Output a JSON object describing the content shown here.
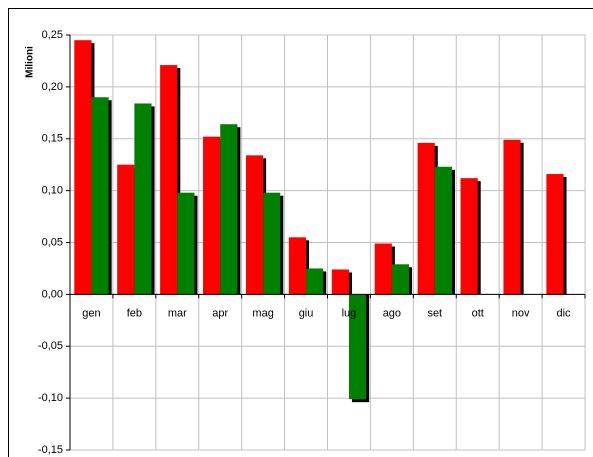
{
  "chart_data": {
    "type": "bar",
    "y_label": "Milioni",
    "categories": [
      "gen",
      "feb",
      "mar",
      "apr",
      "mag",
      "giu",
      "lug",
      "ago",
      "set",
      "ott",
      "nov",
      "dic"
    ],
    "series": [
      {
        "color": "#ff0000",
        "values": [
          0.245,
          0.125,
          0.221,
          0.152,
          0.134,
          0.055,
          0.024,
          0.049,
          0.146,
          0.112,
          0.149,
          0.116
        ]
      },
      {
        "color": "#008000",
        "values": [
          0.19,
          0.184,
          0.098,
          0.164,
          0.098,
          0.025,
          -0.101,
          0.029,
          0.123,
          null,
          null,
          null
        ]
      }
    ],
    "ylim": [
      -0.15,
      0.25
    ],
    "yticks": [
      {
        "value": -0.15,
        "label": "-0,15"
      },
      {
        "value": -0.1,
        "label": "-0,10"
      },
      {
        "value": -0.05,
        "label": "-0,05"
      },
      {
        "value": 0,
        "label": "0,00"
      },
      {
        "value": 0.05,
        "label": "0,05"
      },
      {
        "value": 0.1,
        "label": "0,10"
      },
      {
        "value": 0.15,
        "label": "0,15"
      },
      {
        "value": 0.2,
        "label": "0,20"
      },
      {
        "value": 0.25,
        "label": "0,25"
      }
    ],
    "grid": true,
    "shadow": true
  }
}
